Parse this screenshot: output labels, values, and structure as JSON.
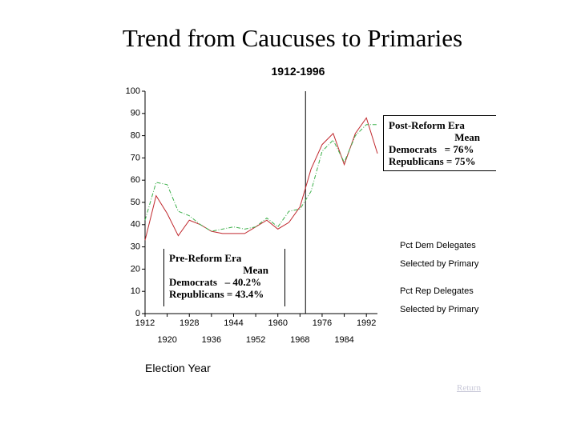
{
  "chart_data": {
    "type": "line",
    "title": "Trend from Caucuses to Primaries",
    "subtitle": "1912-1996",
    "x_label": "Election Year",
    "x": [
      1912,
      1916,
      1920,
      1924,
      1928,
      1932,
      1936,
      1940,
      1944,
      1948,
      1952,
      1956,
      1960,
      1964,
      1968,
      1972,
      1976,
      1980,
      1984,
      1988,
      1992,
      1996
    ],
    "series": [
      {
        "name": "Pct Dem Delegates Selected by Primary",
        "color": "#c0282d",
        "dash": false,
        "values": [
          33,
          53,
          45,
          35,
          42,
          40,
          37,
          36,
          36,
          36,
          39,
          42,
          38,
          41,
          48,
          65,
          76,
          81,
          67,
          81,
          88,
          72
        ]
      },
      {
        "name": "Pct Rep Delegates Selected by Primary",
        "color": "#3cb04a",
        "dash": true,
        "values": [
          42,
          59,
          58,
          46,
          44,
          40,
          37,
          38,
          39,
          38,
          39,
          43,
          39,
          46,
          47,
          55,
          73,
          78,
          68,
          80,
          85,
          85
        ]
      }
    ],
    "xlim": [
      1912,
      1996
    ],
    "xticks": [
      1912,
      1920,
      1928,
      1936,
      1944,
      1952,
      1960,
      1968,
      1976,
      1984,
      1992
    ],
    "ylim": [
      0,
      100
    ],
    "yticks": [
      0,
      10,
      20,
      30,
      40,
      50,
      60,
      70,
      80,
      90,
      100
    ],
    "divider_x": 1970,
    "annotations": [
      {
        "title": "Post-Reform Era",
        "mean": "Mean",
        "dem": "Democrats   = 76%",
        "rep": "Republicans = 75%"
      },
      {
        "title": "Pre-Reform Era",
        "mean": "Mean",
        "dem": "Democrats   – 40.2%",
        "rep": "Republicans = 43.4%"
      }
    ]
  },
  "link": "Return"
}
